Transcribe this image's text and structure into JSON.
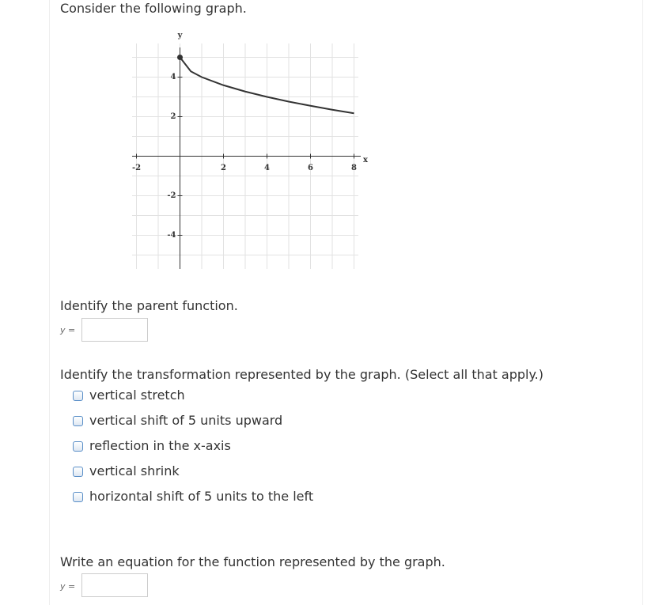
{
  "header": {
    "prompt": "Consider the following graph."
  },
  "graph": {
    "x_label": "x",
    "y_label": "y",
    "xlim": [
      -2.2,
      8.2
    ],
    "ylim": [
      -5.7,
      5.7
    ],
    "xticks": [
      -2,
      2,
      4,
      6,
      8
    ],
    "yticks": [
      -4,
      -2,
      2,
      4
    ],
    "curve": {
      "x": [
        0,
        0.5,
        1,
        2,
        3,
        4,
        5,
        6,
        7,
        8
      ],
      "y": [
        5,
        4.29,
        4,
        3.59,
        3.27,
        3,
        2.76,
        2.55,
        2.35,
        2.17
      ]
    }
  },
  "questions": [
    {
      "prompt": "Identify the parent function.",
      "answer_label": "y ="
    },
    {
      "prompt": "Identify the transformation represented by the graph. (Select all that apply.)",
      "options": [
        "vertical stretch",
        "vertical shift of 5 units upward",
        "reflection in the x-axis",
        "vertical shrink",
        "horizontal shift of 5 units to the left"
      ]
    },
    {
      "prompt": "Write an equation for the function represented by the graph.",
      "answer_label": "y ="
    }
  ]
}
